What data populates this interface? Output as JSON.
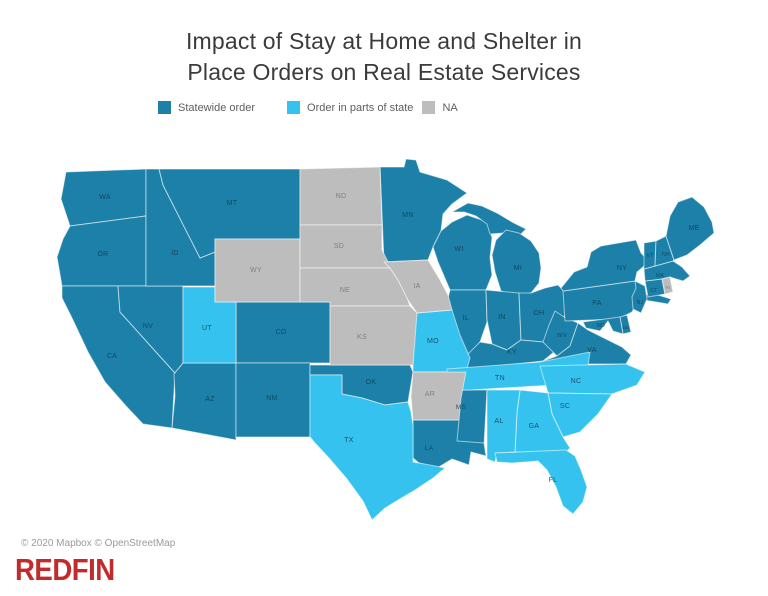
{
  "title": {
    "line1": "Impact of Stay at Home and Shelter in",
    "line2": "Place Orders on Real Estate Services"
  },
  "legend": {
    "items": [
      {
        "id": "statewide",
        "label": "Statewide order",
        "color": "#1c80a8"
      },
      {
        "id": "partial",
        "label": "Order in parts of state",
        "color": "#35c2ee"
      },
      {
        "id": "na",
        "label": "NA",
        "color": "#bdbdbd"
      }
    ]
  },
  "chart_data": {
    "type": "heatmap",
    "subtype": "us-state-choropleth",
    "title": "Impact of Stay at Home and Shelter in Place Orders on Real Estate Services",
    "categories": [
      "Statewide order",
      "Order in parts of state",
      "NA"
    ],
    "legend_position": "top-left",
    "series": [
      {
        "id": "statewide",
        "name": "Statewide order",
        "states": [
          "WA",
          "OR",
          "CA",
          "NV",
          "ID",
          "MT",
          "CO",
          "AZ",
          "NM",
          "OK",
          "MN",
          "WI",
          "MI",
          "IL",
          "IN",
          "OH",
          "KY",
          "WV",
          "VA",
          "PA",
          "NY",
          "NJ",
          "DE",
          "MD",
          "CT",
          "MA",
          "VT",
          "NH",
          "ME",
          "MS",
          "LA"
        ]
      },
      {
        "id": "partial",
        "name": "Order in parts of state",
        "states": [
          "UT",
          "TX",
          "MO",
          "TN",
          "NC",
          "SC",
          "GA",
          "AL",
          "FL"
        ]
      },
      {
        "id": "na",
        "name": "NA",
        "states": [
          "WY",
          "ND",
          "SD",
          "NE",
          "KS",
          "IA",
          "AR",
          "RI"
        ]
      }
    ],
    "label_colors": {
      "default": "#123c51",
      "na": "#757575"
    }
  },
  "attribution": "© 2020 Mapbox © OpenStreetMap",
  "logo": "REDFIN"
}
